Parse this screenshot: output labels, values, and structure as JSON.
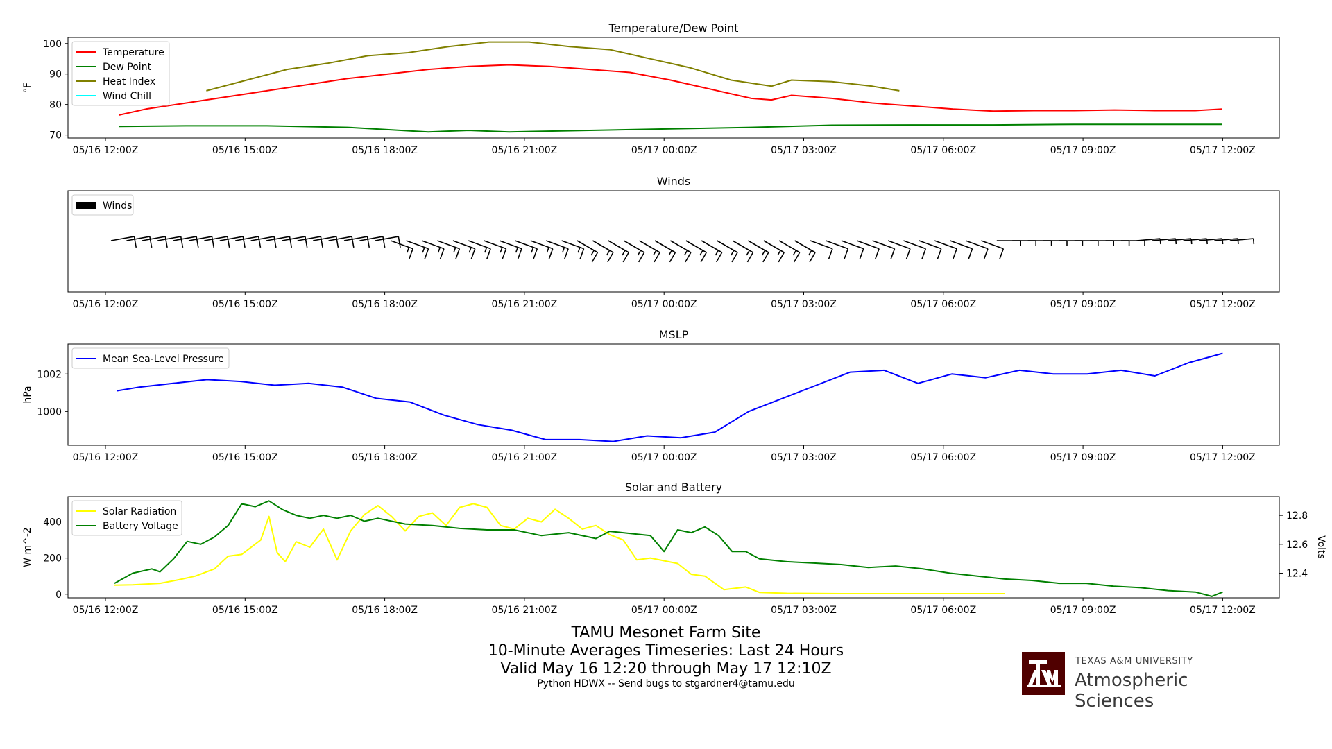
{
  "chart_data": [
    {
      "type": "line",
      "title": "Temperature/Dew Point",
      "ylabel": "°F",
      "ylim": [
        69,
        102
      ],
      "yticks": [
        70,
        80,
        90,
        100
      ],
      "xticks": [
        "05/16 12:00Z",
        "05/16 15:00Z",
        "05/16 18:00Z",
        "05/16 21:00Z",
        "05/17 00:00Z",
        "05/17 03:00Z",
        "05/17 06:00Z",
        "05/17 09:00Z",
        "05/17 12:00Z"
      ],
      "legend_position": "top-left",
      "series": [
        {
          "name": "Temperature",
          "color": "#ff0000",
          "points": [
            [
              0.33,
              76.5
            ],
            [
              1,
              78.5
            ],
            [
              2,
              80.5
            ],
            [
              3,
              82.5
            ],
            [
              4,
              84.5
            ],
            [
              5,
              86.5
            ],
            [
              6,
              88.5
            ],
            [
              7,
              90
            ],
            [
              8,
              91.5
            ],
            [
              9,
              92.5
            ],
            [
              10,
              93
            ],
            [
              11,
              92.5
            ],
            [
              12,
              91.5
            ],
            [
              13,
              90.5
            ],
            [
              14,
              88
            ],
            [
              15,
              85
            ],
            [
              16,
              82
            ],
            [
              16.5,
              81.5
            ],
            [
              17,
              83
            ],
            [
              18,
              82
            ],
            [
              19,
              80.5
            ],
            [
              20,
              79.5
            ],
            [
              21,
              78.5
            ],
            [
              22,
              77.8
            ],
            [
              23,
              78
            ],
            [
              24,
              78
            ],
            [
              25,
              78.2
            ],
            [
              26,
              78
            ],
            [
              27,
              78
            ],
            [
              27.67,
              78.5
            ]
          ]
        },
        {
          "name": "Dew Point",
          "color": "#008000",
          "points": [
            [
              0.33,
              72.8
            ],
            [
              2,
              73
            ],
            [
              4,
              73
            ],
            [
              6,
              72.5
            ],
            [
              8,
              71
            ],
            [
              9,
              71.5
            ],
            [
              10,
              71
            ],
            [
              12,
              71.5
            ],
            [
              14,
              72
            ],
            [
              16,
              72.5
            ],
            [
              18,
              73.2
            ],
            [
              20,
              73.3
            ],
            [
              22,
              73.3
            ],
            [
              24,
              73.5
            ],
            [
              26,
              73.5
            ],
            [
              27.67,
              73.5
            ]
          ]
        },
        {
          "name": "Heat Index",
          "color": "#808000",
          "points": [
            [
              2.5,
              84.5
            ],
            [
              3.5,
              88
            ],
            [
              4.5,
              91.5
            ],
            [
              5.5,
              93.5
            ],
            [
              6.5,
              96
            ],
            [
              7.5,
              97
            ],
            [
              8.5,
              99
            ],
            [
              9.5,
              100.5
            ],
            [
              10.5,
              100.5
            ],
            [
              11.5,
              99
            ],
            [
              12.5,
              98
            ],
            [
              13.5,
              95
            ],
            [
              14.5,
              92
            ],
            [
              15.5,
              88
            ],
            [
              16.5,
              86
            ],
            [
              17,
              88
            ],
            [
              18,
              87.5
            ],
            [
              19,
              86
            ],
            [
              19.67,
              84.5
            ]
          ]
        },
        {
          "name": "Wind Chill",
          "color": "#00ffff",
          "points": []
        }
      ]
    },
    {
      "type": "barbs",
      "title": "Winds",
      "xticks": [
        "05/16 12:00Z",
        "05/16 15:00Z",
        "05/16 18:00Z",
        "05/16 21:00Z",
        "05/17 00:00Z",
        "05/17 03:00Z",
        "05/17 06:00Z",
        "05/17 09:00Z",
        "05/17 12:00Z"
      ],
      "legend_position": "top-left",
      "series": [
        {
          "name": "Winds",
          "color": "#000000"
        }
      ],
      "barbs": [
        {
          "t": [
            0,
            6
          ],
          "dir": 260,
          "barbs": 1
        },
        {
          "t": [
            6,
            10
          ],
          "dir": 290,
          "barbs": 1.5
        },
        {
          "t": [
            10,
            15
          ],
          "dir": 300,
          "barbs": 1.5
        },
        {
          "t": [
            15,
            19
          ],
          "dir": 290,
          "barbs": 1
        },
        {
          "t": [
            19,
            22
          ],
          "dir": 270,
          "barbs": 0.5
        },
        {
          "t": [
            22,
            26
          ],
          "dir": 265,
          "barbs": 0.5
        },
        {
          "t": [
            26,
            28
          ],
          "dir": 290,
          "barbs": 1
        }
      ]
    },
    {
      "type": "line",
      "title": "MSLP",
      "ylabel": "hPa",
      "ylim": [
        998.2,
        1003.6
      ],
      "yticks": [
        1000,
        1002
      ],
      "xticks": [
        "05/16 12:00Z",
        "05/16 15:00Z",
        "05/16 18:00Z",
        "05/16 21:00Z",
        "05/17 00:00Z",
        "05/17 03:00Z",
        "05/17 06:00Z",
        "05/17 09:00Z",
        "05/17 12:00Z"
      ],
      "legend_position": "top-left",
      "series": [
        {
          "name": "Mean Sea-Level Pressure",
          "color": "#0000ff",
          "points": [
            [
              0.33,
              1001.1
            ],
            [
              1,
              1001.3
            ],
            [
              2,
              1001.5
            ],
            [
              3,
              1001.7
            ],
            [
              4,
              1001.6
            ],
            [
              5,
              1001.4
            ],
            [
              6,
              1001.5
            ],
            [
              7,
              1001.3
            ],
            [
              8,
              1000.7
            ],
            [
              9,
              1000.5
            ],
            [
              10,
              999.8
            ],
            [
              11,
              999.3
            ],
            [
              12,
              999.0
            ],
            [
              13,
              998.5
            ],
            [
              14,
              998.5
            ],
            [
              15,
              998.4
            ],
            [
              16,
              998.7
            ],
            [
              17,
              998.6
            ],
            [
              18,
              998.9
            ],
            [
              19,
              1000.0
            ],
            [
              20,
              1000.7
            ],
            [
              21,
              1001.4
            ],
            [
              22,
              1002.1
            ],
            [
              23,
              1002.2
            ],
            [
              24,
              1001.5
            ],
            [
              25,
              1002.0
            ],
            [
              26,
              1001.8
            ],
            [
              27,
              1002.2
            ],
            [
              28,
              1002.0
            ],
            [
              29,
              1002.0
            ],
            [
              30,
              1002.2
            ],
            [
              31,
              1001.9
            ],
            [
              32,
              1002.6
            ],
            [
              33,
              1003.1
            ]
          ]
        }
      ],
      "x_note_scale": "units of 3-hour steps x0.8"
    },
    {
      "type": "line",
      "title": "Solar and Battery",
      "ylabel": "W m^-2",
      "ylabel_right": "Volts",
      "ylim": [
        -20,
        540
      ],
      "yticks": [
        0,
        200,
        400
      ],
      "ylim_right": [
        12.23,
        12.93
      ],
      "yticks_right": [
        12.4,
        12.6,
        12.8
      ],
      "xticks": [
        "05/16 12:00Z",
        "05/16 15:00Z",
        "05/16 18:00Z",
        "05/16 21:00Z",
        "05/17 00:00Z",
        "05/17 03:00Z",
        "05/17 06:00Z",
        "05/17 09:00Z",
        "05/17 12:00Z"
      ],
      "legend_position": "top-left",
      "series": [
        {
          "name": "Solar Radiation",
          "color": "#ffff00",
          "axis": "left",
          "points": [
            [
              0.33,
              50
            ],
            [
              1,
              52
            ],
            [
              2,
              60
            ],
            [
              2.7,
              80
            ],
            [
              3.3,
              100
            ],
            [
              4,
              140
            ],
            [
              4.5,
              210
            ],
            [
              5,
              220
            ],
            [
              5.7,
              300
            ],
            [
              6,
              430
            ],
            [
              6.3,
              230
            ],
            [
              6.6,
              180
            ],
            [
              7,
              290
            ],
            [
              7.5,
              260
            ],
            [
              8,
              360
            ],
            [
              8.5,
              190
            ],
            [
              9,
              350
            ],
            [
              9.5,
              440
            ],
            [
              10,
              490
            ],
            [
              10.5,
              430
            ],
            [
              11,
              350
            ],
            [
              11.5,
              430
            ],
            [
              12,
              450
            ],
            [
              12.5,
              380
            ],
            [
              13,
              480
            ],
            [
              13.5,
              500
            ],
            [
              14,
              480
            ],
            [
              14.5,
              380
            ],
            [
              15,
              360
            ],
            [
              15.5,
              420
            ],
            [
              16,
              400
            ],
            [
              16.5,
              470
            ],
            [
              17,
              420
            ],
            [
              17.5,
              360
            ],
            [
              18,
              380
            ],
            [
              18.5,
              330
            ],
            [
              19,
              300
            ],
            [
              19.5,
              190
            ],
            [
              20,
              200
            ],
            [
              21,
              170
            ],
            [
              21.5,
              110
            ],
            [
              22,
              100
            ],
            [
              22.7,
              25
            ],
            [
              23.5,
              40
            ],
            [
              24,
              10
            ],
            [
              25,
              5
            ],
            [
              27,
              3
            ],
            [
              28,
              3
            ],
            [
              30,
              3
            ],
            [
              33,
              3
            ]
          ]
        },
        {
          "name": "Battery Voltage",
          "color": "#008000",
          "axis": "right",
          "points": [
            [
              0.33,
              12.33
            ],
            [
              1,
              12.4
            ],
            [
              1.7,
              12.43
            ],
            [
              2,
              12.41
            ],
            [
              2.5,
              12.5
            ],
            [
              3,
              12.62
            ],
            [
              3.5,
              12.6
            ],
            [
              4,
              12.65
            ],
            [
              4.5,
              12.73
            ],
            [
              5,
              12.88
            ],
            [
              5.5,
              12.86
            ],
            [
              6,
              12.9
            ],
            [
              6.5,
              12.84
            ],
            [
              7,
              12.8
            ],
            [
              7.5,
              12.78
            ],
            [
              8,
              12.8
            ],
            [
              8.5,
              12.78
            ],
            [
              9,
              12.8
            ],
            [
              9.5,
              12.76
            ],
            [
              10,
              12.78
            ],
            [
              11,
              12.74
            ],
            [
              12,
              12.73
            ],
            [
              13,
              12.71
            ],
            [
              14,
              12.7
            ],
            [
              15,
              12.7
            ],
            [
              16,
              12.66
            ],
            [
              17,
              12.68
            ],
            [
              18,
              12.64
            ],
            [
              18.5,
              12.69
            ],
            [
              19,
              12.68
            ],
            [
              20,
              12.66
            ],
            [
              20.5,
              12.55
            ],
            [
              21,
              12.7
            ],
            [
              21.5,
              12.68
            ],
            [
              22,
              12.72
            ],
            [
              22.5,
              12.66
            ],
            [
              23,
              12.55
            ],
            [
              23.5,
              12.55
            ],
            [
              24,
              12.5
            ],
            [
              25,
              12.48
            ],
            [
              26,
              12.47
            ],
            [
              27,
              12.46
            ],
            [
              28,
              12.44
            ],
            [
              29,
              12.45
            ],
            [
              30,
              12.43
            ],
            [
              31,
              12.4
            ],
            [
              32,
              12.38
            ],
            [
              33,
              12.36
            ],
            [
              34,
              12.35
            ],
            [
              35,
              12.33
            ],
            [
              36,
              12.33
            ],
            [
              37,
              12.31
            ],
            [
              38,
              12.3
            ],
            [
              39,
              12.28
            ],
            [
              40,
              12.27
            ],
            [
              40.6,
              12.24
            ],
            [
              41,
              12.27
            ]
          ]
        }
      ]
    }
  ],
  "footer": {
    "line1": "TAMU Mesonet Farm Site",
    "line2": "10-Minute Averages Timeseries: Last 24 Hours",
    "line3": "Valid May 16 12:20 through May 17 12:10Z",
    "line4": "Python HDWX -- Send bugs to stgardner4@tamu.edu"
  },
  "logo": {
    "line1": "TEXAS A&M UNIVERSITY",
    "line2": "Atmospheric Sciences",
    "color": "#500000"
  }
}
